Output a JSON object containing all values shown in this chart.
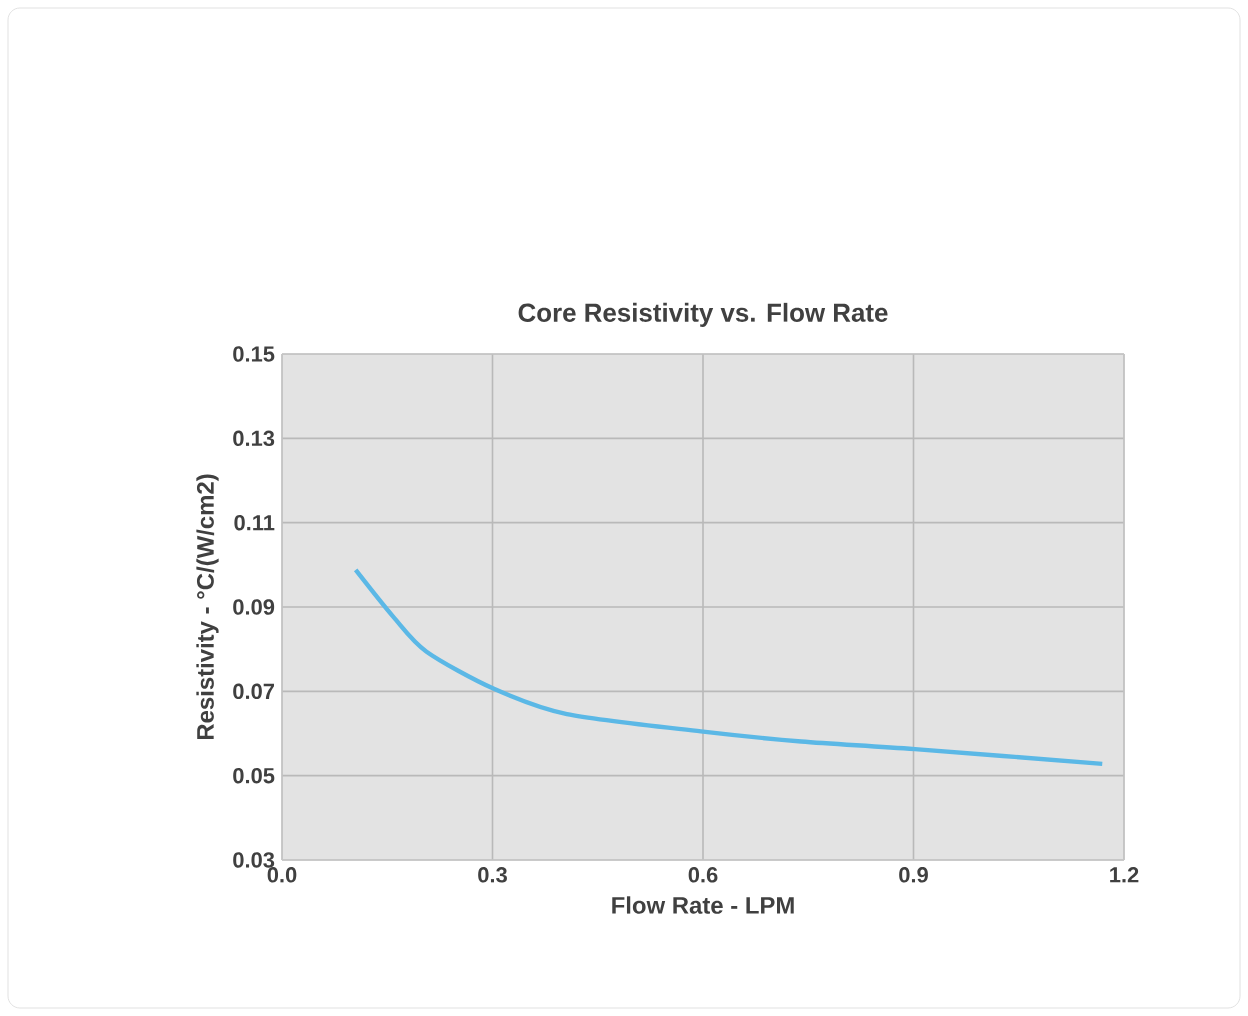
{
  "chart_data": {
    "type": "line",
    "title": "Core Resistivity vs. Flow Rate",
    "xlabel": "Flow Rate - LPM",
    "ylabel": "Resistivity - °C/(W/cm2)",
    "xlim": [
      0.0,
      1.2
    ],
    "xticks": [
      {
        "value": 0,
        "label": "0.0"
      },
      0.3,
      0.6,
      0.9,
      1.2
    ],
    "ylim": [
      0.03,
      0.15
    ],
    "yticks": [
      0.03,
      0.05,
      0.07,
      0.09,
      0.11,
      0.13,
      0.15
    ],
    "grid": true,
    "series": [
      {
        "color": "#5bb8e6",
        "x": [
          0.105,
          0.159,
          0.206,
          0.302,
          0.406,
          0.597,
          0.74,
          0.902,
          1.169
        ],
        "values": [
          0.0988,
          0.0876,
          0.0794,
          0.0706,
          0.0646,
          0.0605,
          0.0581,
          0.0563,
          0.0528
        ]
      }
    ]
  }
}
